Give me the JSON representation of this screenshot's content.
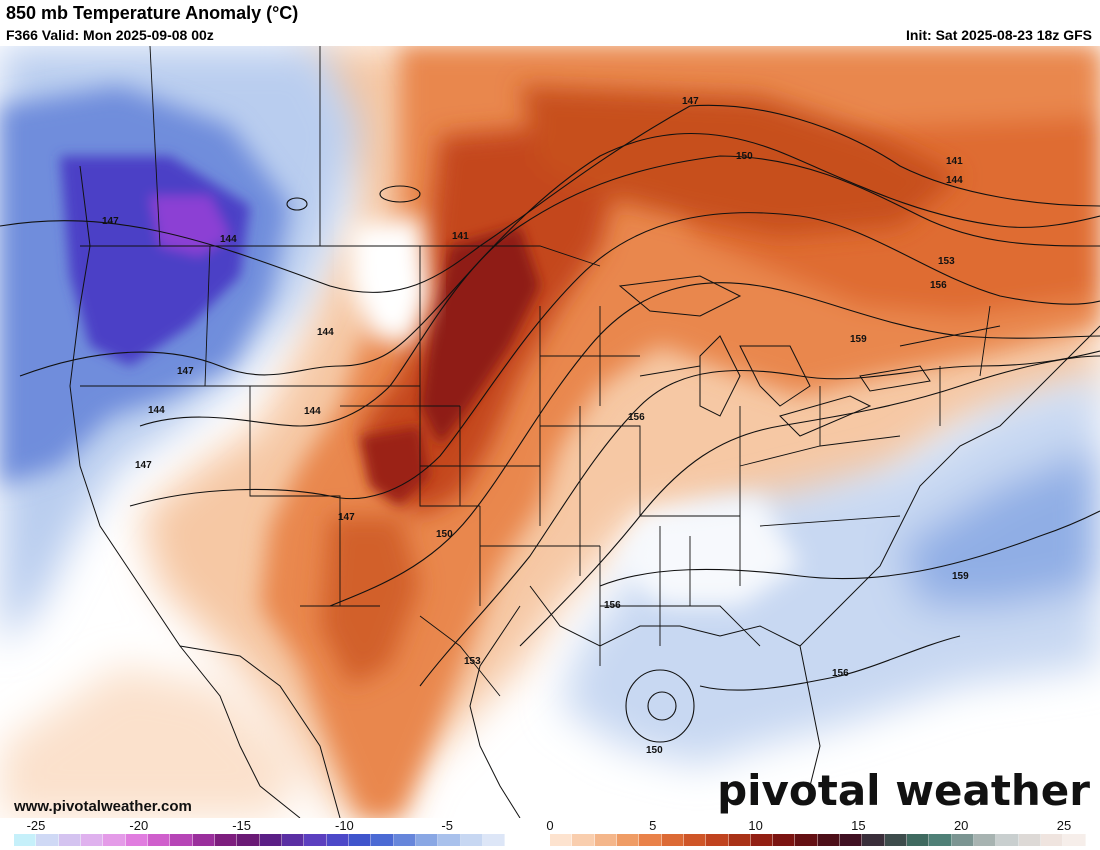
{
  "header": {
    "title": "850 mb Temperature Anomaly (°C)",
    "valid": "F366 Valid: Mon 2025-09-08 00z",
    "init": "Init: Sat 2025-08-23 18z GFS"
  },
  "footer": {
    "website": "www.pivotalweather.com",
    "brand": "pivotal weather"
  },
  "colorbar": {
    "tick_labels": [
      "-25",
      "-20",
      "-15",
      "-10",
      "-5",
      "0",
      "5",
      "10",
      "15",
      "20",
      "25"
    ],
    "colors": [
      "#c6f0fa",
      "#cfd9f5",
      "#d4c3f0",
      "#dfb1ee",
      "#e49be8",
      "#e07ddf",
      "#cf5fcc",
      "#b645b6",
      "#9a2f9c",
      "#7d1e7e",
      "#6a1a75",
      "#5a1f86",
      "#5a2fa3",
      "#5b3fbf",
      "#4c48c8",
      "#3f55cc",
      "#4b6ad4",
      "#6686db",
      "#89a7e4",
      "#a9c1ec",
      "#c7d7f2",
      "#dde6f7",
      "#ffffff",
      "#ffffff",
      "#fde3cf",
      "#f9ceae",
      "#f4b68a",
      "#ef9c65",
      "#e9824a",
      "#dc6a35",
      "#cf5628",
      "#c0431f",
      "#a93217",
      "#921f13",
      "#7b1411",
      "#641013",
      "#4d0f19",
      "#3f1022",
      "#3a2e3a",
      "#3d4c4c",
      "#3f6a60",
      "#4f8077",
      "#7b9592",
      "#a7b3b1",
      "#c9cfcf",
      "#ddd9d6",
      "#efe4df",
      "#f6eeea"
    ]
  },
  "contour_labels": [
    "147",
    "150",
    "141",
    "144",
    "153",
    "156",
    "159",
    "144",
    "141",
    "147",
    "144",
    "147",
    "144",
    "147",
    "144",
    "147",
    "150",
    "156",
    "153",
    "156",
    "159",
    "150",
    "156"
  ],
  "colors": {
    "cold_deep": "#4a3fc4",
    "cold_mid": "#7d9be0",
    "cold_light": "#c9d8f2",
    "warm_light": "#f7c9a3",
    "warm_mid": "#e57a3f",
    "warm_deep": "#b23a1c",
    "warm_extreme": "#7a1616"
  }
}
